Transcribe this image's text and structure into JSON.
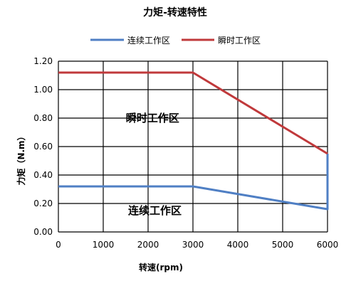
{
  "chart_data": {
    "type": "line",
    "title": "力矩-转速特性",
    "xlabel": "转速(rpm)",
    "ylabel": "力矩（N.m）",
    "xlim": [
      0,
      6000
    ],
    "ylim": [
      0,
      1.2
    ],
    "x_ticks": [
      "0",
      "1000",
      "2000",
      "3000",
      "4000",
      "5000",
      "6000"
    ],
    "y_ticks": [
      "0.00",
      "0.20",
      "0.40",
      "0.60",
      "0.80",
      "1.00",
      "1.20"
    ],
    "grid": true,
    "legend_position": "top",
    "series": [
      {
        "name": "连续工作区",
        "color": "#4f7fc4",
        "x": [
          0,
          3000,
          6000,
          6000
        ],
        "y": [
          0.32,
          0.32,
          0.16,
          0.55
        ]
      },
      {
        "name": "瞬时工作区",
        "color": "#c0393b",
        "x": [
          0,
          3000,
          6000
        ],
        "y": [
          1.12,
          1.12,
          0.55
        ]
      }
    ],
    "annotations": [
      {
        "text": "瞬时工作区",
        "x": 2100,
        "y": 0.8
      },
      {
        "text": "连续工作区",
        "x": 2150,
        "y": 0.15
      }
    ]
  }
}
